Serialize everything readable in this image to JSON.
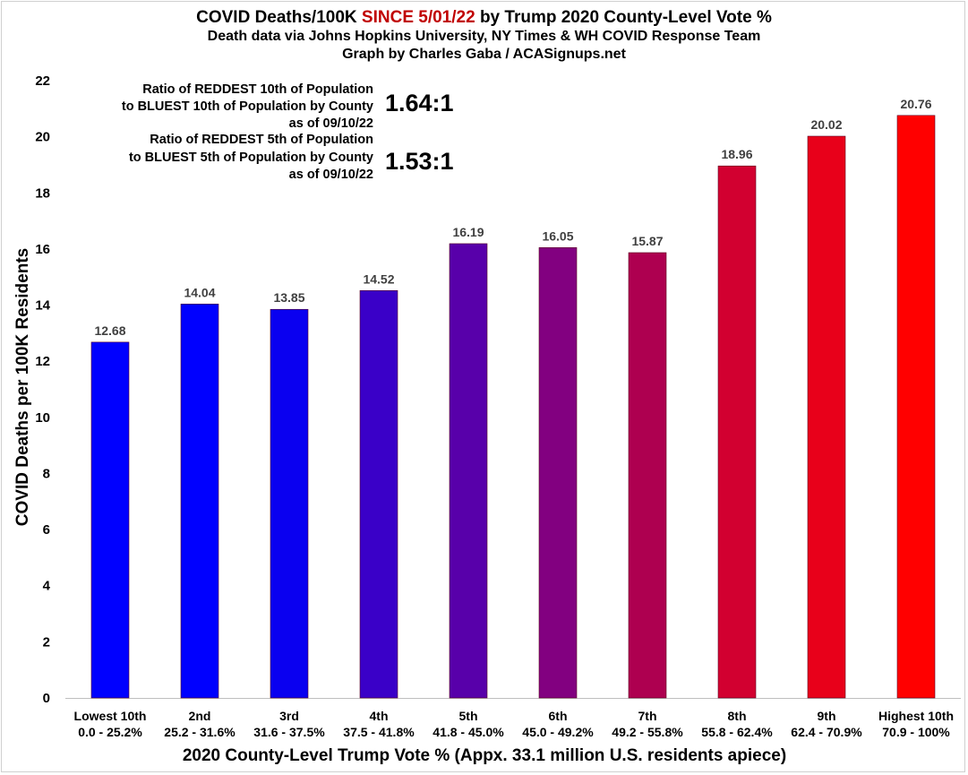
{
  "title": {
    "line1_prefix": "COVID Deaths/100K ",
    "line1_highlight": "SINCE 5/01/22",
    "line1_suffix": " by Trump 2020 County-Level Vote %",
    "highlight_color": "#c00000",
    "line2": "Death data via Johns Hopkins University, NY Times & WH COVID Response Team",
    "line3": "Graph by Charles Gaba / ACASignups.net"
  },
  "annotations": [
    {
      "lines": [
        "Ratio of REDDEST 10th of Population",
        "to BLUEST 10th of Population by County",
        "as of 09/10/22"
      ],
      "ratio": "1.64:1"
    },
    {
      "lines": [
        "Ratio of REDDEST 5th of Population",
        "to BLUEST 5th of Population by County",
        "as of 09/10/22"
      ],
      "ratio": "1.53:1"
    }
  ],
  "chart_data": {
    "type": "bar",
    "title": "COVID Deaths/100K SINCE 5/01/22 by Trump 2020 County-Level Vote %",
    "xlabel": "2020 County-Level Trump Vote % (Appx. 33.1 million U.S. residents apiece)",
    "ylabel": "COVID Deaths per 100K Residents",
    "ylim": [
      0,
      22
    ],
    "yticks": [
      0,
      2,
      4,
      6,
      8,
      10,
      12,
      14,
      16,
      18,
      20,
      22
    ],
    "grid": false,
    "legend": "none",
    "categories": [
      "Lowest 10th",
      "2nd",
      "3rd",
      "4th",
      "5th",
      "6th",
      "7th",
      "8th",
      "9th",
      "Highest 10th"
    ],
    "category_ranges": [
      "0.0 - 25.2%",
      "25.2 - 31.6%",
      "31.6 - 37.5%",
      "37.5 - 41.8%",
      "41.8 - 45.0%",
      "45.0 - 49.2%",
      "49.2 - 55.8%",
      "55.8 - 62.4%",
      "62.4 - 70.9%",
      "70.9 - 100%"
    ],
    "values": [
      12.68,
      14.04,
      13.85,
      14.52,
      16.19,
      16.05,
      15.87,
      18.96,
      20.02,
      20.76
    ],
    "value_labels": [
      "12.68",
      "14.04",
      "13.85",
      "14.52",
      "16.19",
      "16.05",
      "15.87",
      "18.96",
      "20.02",
      "20.76"
    ],
    "colors": [
      "#0000ff",
      "#0000ff",
      "#0a00f0",
      "#3a00c8",
      "#5800aa",
      "#820080",
      "#ae0050",
      "#d20030",
      "#e8001a",
      "#ff0000"
    ]
  }
}
